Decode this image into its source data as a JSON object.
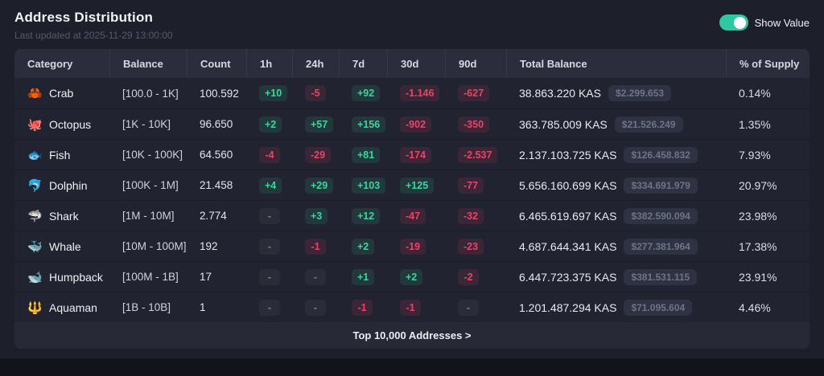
{
  "header": {
    "title": "Address Distribution",
    "last_updated": "Last updated at 2025-11-29 13:00:00",
    "toggle_label": "Show Value",
    "toggle_on": true
  },
  "colors": {
    "accent_green": "#2ec9a2",
    "badge_up": "#3bd699",
    "badge_down": "#ed4265",
    "card_bg": "#212330",
    "header_bg": "#2b2d3c"
  },
  "table": {
    "columns": [
      "Category",
      "Balance",
      "Count",
      "1h",
      "24h",
      "7d",
      "30d",
      "90d",
      "Total Balance",
      "% of Supply"
    ],
    "rows": [
      {
        "icon": "🦀",
        "category": "Crab",
        "balance": "[100.0 - 1K]",
        "count": "100.592",
        "changes": [
          {
            "v": "+10",
            "t": "up"
          },
          {
            "v": "-5",
            "t": "down"
          },
          {
            "v": "+92",
            "t": "up"
          },
          {
            "v": "-1.146",
            "t": "down"
          },
          {
            "v": "-627",
            "t": "down"
          }
        ],
        "total": "38.863.220 KAS",
        "usd": "$2.299.653",
        "supply": "0.14%"
      },
      {
        "icon": "🐙",
        "category": "Octopus",
        "balance": "[1K - 10K]",
        "count": "96.650",
        "changes": [
          {
            "v": "+2",
            "t": "up"
          },
          {
            "v": "+57",
            "t": "up"
          },
          {
            "v": "+156",
            "t": "up"
          },
          {
            "v": "-902",
            "t": "down"
          },
          {
            "v": "-350",
            "t": "down"
          }
        ],
        "total": "363.785.009 KAS",
        "usd": "$21.526.249",
        "supply": "1.35%"
      },
      {
        "icon": "🐟",
        "category": "Fish",
        "balance": "[10K - 100K]",
        "count": "64.560",
        "changes": [
          {
            "v": "-4",
            "t": "down"
          },
          {
            "v": "-29",
            "t": "down"
          },
          {
            "v": "+81",
            "t": "up"
          },
          {
            "v": "-174",
            "t": "down"
          },
          {
            "v": "-2.537",
            "t": "down"
          }
        ],
        "total": "2.137.103.725 KAS",
        "usd": "$126.458.832",
        "supply": "7.93%"
      },
      {
        "icon": "🐬",
        "category": "Dolphin",
        "balance": "[100K - 1M]",
        "count": "21.458",
        "changes": [
          {
            "v": "+4",
            "t": "up"
          },
          {
            "v": "+29",
            "t": "up"
          },
          {
            "v": "+103",
            "t": "up"
          },
          {
            "v": "+125",
            "t": "up"
          },
          {
            "v": "-77",
            "t": "down"
          }
        ],
        "total": "5.656.160.699 KAS",
        "usd": "$334.691.979",
        "supply": "20.97%"
      },
      {
        "icon": "🦈",
        "category": "Shark",
        "balance": "[1M - 10M]",
        "count": "2.774",
        "changes": [
          {
            "v": "-",
            "t": "none"
          },
          {
            "v": "+3",
            "t": "up"
          },
          {
            "v": "+12",
            "t": "up"
          },
          {
            "v": "-47",
            "t": "down"
          },
          {
            "v": "-32",
            "t": "down"
          }
        ],
        "total": "6.465.619.697 KAS",
        "usd": "$382.590.094",
        "supply": "23.98%"
      },
      {
        "icon": "🐳",
        "category": "Whale",
        "balance": "[10M - 100M]",
        "count": "192",
        "changes": [
          {
            "v": "-",
            "t": "none"
          },
          {
            "v": "-1",
            "t": "down"
          },
          {
            "v": "+2",
            "t": "up"
          },
          {
            "v": "-19",
            "t": "down"
          },
          {
            "v": "-23",
            "t": "down"
          }
        ],
        "total": "4.687.644.341 KAS",
        "usd": "$277.381.964",
        "supply": "17.38%"
      },
      {
        "icon": "🐋",
        "category": "Humpback",
        "balance": "[100M - 1B]",
        "count": "17",
        "changes": [
          {
            "v": "-",
            "t": "none"
          },
          {
            "v": "-",
            "t": "none"
          },
          {
            "v": "+1",
            "t": "up"
          },
          {
            "v": "+2",
            "t": "up"
          },
          {
            "v": "-2",
            "t": "down"
          }
        ],
        "total": "6.447.723.375 KAS",
        "usd": "$381.531.115",
        "supply": "23.91%"
      },
      {
        "icon": "🔱",
        "category": "Aquaman",
        "balance": "[1B - 10B]",
        "count": "1",
        "changes": [
          {
            "v": "-",
            "t": "none"
          },
          {
            "v": "-",
            "t": "none"
          },
          {
            "v": "-1",
            "t": "down"
          },
          {
            "v": "-1",
            "t": "down"
          },
          {
            "v": "-",
            "t": "none"
          }
        ],
        "total": "1.201.487.294 KAS",
        "usd": "$71.095.604",
        "supply": "4.46%"
      }
    ],
    "footer_link": "Top 10,000 Addresses >"
  }
}
